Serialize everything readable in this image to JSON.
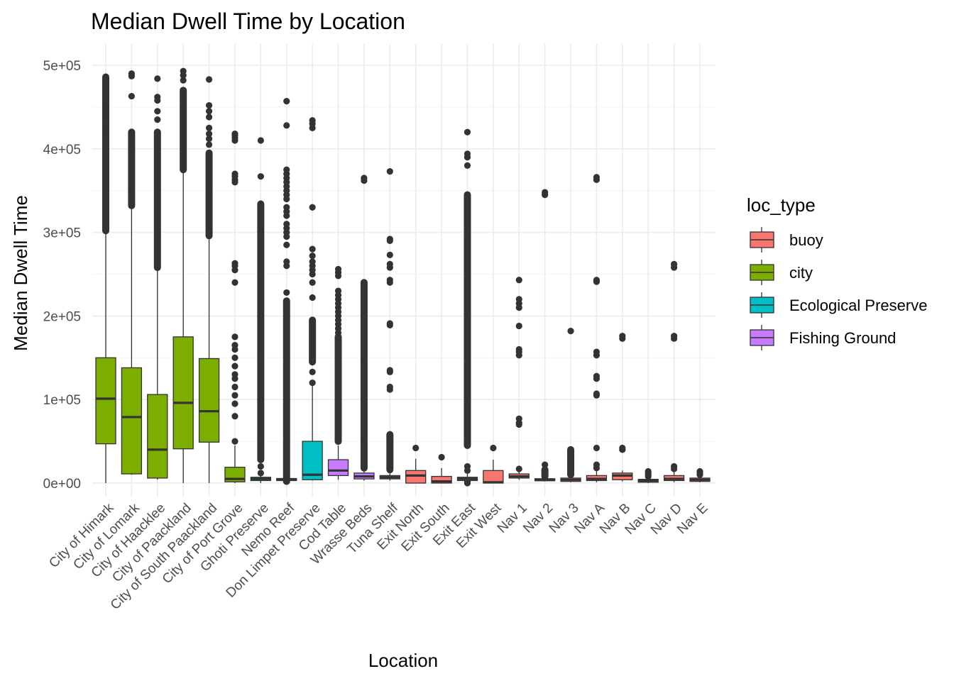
{
  "chart_data": {
    "type": "box",
    "title": "Median Dwell Time by Location",
    "xlabel": "Location",
    "ylabel": "Median Dwell Time",
    "ylim": [
      -20000,
      520000
    ],
    "yticks": [
      0,
      100000,
      200000,
      300000,
      400000,
      500000
    ],
    "ytick_labels": [
      "0e+00",
      "1e+05",
      "2e+05",
      "3e+05",
      "4e+05",
      "5e+05"
    ],
    "grid": true,
    "legend": {
      "title": "loc_type",
      "placement": "right"
    },
    "series": [
      {
        "name": "buoy",
        "color": "#F8766D"
      },
      {
        "name": "city",
        "color": "#7CAE00"
      },
      {
        "name": "Ecological Preserve",
        "color": "#00BFC4"
      },
      {
        "name": "Fishing Ground",
        "color": "#C77CFF"
      }
    ],
    "categories": [
      {
        "label": "City of Himark",
        "type": "city",
        "min": 0,
        "q1": 47000,
        "median": 101000,
        "q3": 150000,
        "max": 302000,
        "outliers_low": 302000,
        "outliers_high": 486000,
        "outlier_dense": true,
        "extra_outliers": [
          446000,
          440000,
          425000
        ]
      },
      {
        "label": "City of Lomark",
        "type": "city",
        "min": 10000,
        "q1": 11000,
        "median": 79000,
        "q3": 138000,
        "max": 330000,
        "outliers_low": 332000,
        "outliers_high": 420000,
        "outlier_dense": true,
        "extra_outliers": [
          490000,
          487000,
          463000
        ]
      },
      {
        "label": "City of Haacklee",
        "type": "city",
        "min": 4000,
        "q1": 6000,
        "median": 40000,
        "q3": 106000,
        "max": 255000,
        "outliers_low": 258000,
        "outliers_high": 420000,
        "outlier_dense": true,
        "extra_outliers": [
          484000,
          462000,
          458000,
          445000,
          435000
        ]
      },
      {
        "label": "City of Paackland",
        "type": "city",
        "min": 0,
        "q1": 41000,
        "median": 96000,
        "q3": 175000,
        "max": 373000,
        "outliers_low": 375000,
        "outliers_high": 470000,
        "outlier_dense": true,
        "extra_outliers": [
          493000,
          488000,
          482000
        ]
      },
      {
        "label": "City of South Paackland",
        "type": "city",
        "min": 0,
        "q1": 49000,
        "median": 86000,
        "q3": 149000,
        "max": 293000,
        "outliers_low": 296000,
        "outliers_high": 395000,
        "outlier_dense": true,
        "extra_outliers": [
          483000,
          452000,
          445000,
          438000,
          425000,
          418000,
          412000,
          405000
        ]
      },
      {
        "label": "City of Port Grove",
        "type": "city",
        "min": 0,
        "q1": 1500,
        "median": 5000,
        "q3": 19000,
        "max": 45000,
        "outlier_dense": false,
        "extra_outliers": [
          50000,
          80000,
          95000,
          105000,
          115000,
          125000,
          130000,
          140000,
          150000,
          160000,
          165000,
          175000,
          240000,
          255000,
          260000,
          263000,
          360000,
          363000,
          367000,
          370000,
          410000,
          413000,
          416000,
          418000
        ]
      },
      {
        "label": "Ghoti Preserve",
        "type": "Ecological Preserve",
        "min": 0,
        "q1": 3000,
        "median": 5000,
        "q3": 7000,
        "max": 9000,
        "outliers_low": 28000,
        "outliers_high": 334000,
        "outlier_dense": true,
        "extra_outliers": [
          12000,
          20000,
          367000,
          410000
        ]
      },
      {
        "label": "Nemo Reef",
        "type": "Ecological Preserve",
        "min": 0,
        "q1": 3000,
        "median": 4000,
        "q3": 5500,
        "max": 8000,
        "outliers_low": 2000,
        "outliers_high": 218000,
        "outlier_dense": true,
        "extra_outliers": [
          228000,
          260000,
          265000,
          285000,
          295000,
          300000,
          305000,
          310000,
          320000,
          325000,
          330000,
          340000,
          345000,
          350000,
          355000,
          360000,
          365000,
          370000,
          375000,
          428000,
          457000
        ]
      },
      {
        "label": "Don Limpet Preserve",
        "type": "Ecological Preserve",
        "min": 3000,
        "q1": 4000,
        "median": 10000,
        "q3": 50000,
        "max": 118000,
        "outliers_low": 145000,
        "outliers_high": 195000,
        "outlier_dense": true,
        "extra_outliers": [
          120000,
          133000,
          222000,
          240000,
          250000,
          255000,
          260000,
          265000,
          272000,
          280000,
          330000,
          425000,
          430000,
          434000
        ]
      },
      {
        "label": "Cod Table",
        "type": "Fishing Ground",
        "min": 4000,
        "q1": 9000,
        "median": 15000,
        "q3": 28000,
        "max": 45000,
        "outliers_low": 50000,
        "outliers_high": 175000,
        "outlier_dense": true,
        "extra_outliers": [
          180000,
          185000,
          190000,
          195000,
          200000,
          205000,
          210000,
          215000,
          220000,
          225000,
          230000,
          248000,
          252000,
          256000
        ]
      },
      {
        "label": "Wrasse Beds",
        "type": "Fishing Ground",
        "min": 3000,
        "q1": 5000,
        "median": 8000,
        "q3": 12000,
        "max": 16000,
        "outliers_low": 18000,
        "outliers_high": 240000,
        "outlier_dense": true,
        "extra_outliers": [
          362000,
          365000
        ]
      },
      {
        "label": "Tuna Shelf",
        "type": "Fishing Ground",
        "min": 3000,
        "q1": 5000,
        "median": 7000,
        "q3": 9000,
        "max": 13000,
        "outliers_low": 16000,
        "outliers_high": 58000,
        "outlier_dense": true,
        "extra_outliers": [
          112000,
          115000,
          133000,
          135000,
          189000,
          191000,
          240000,
          243000,
          258000,
          262000,
          273000,
          290000,
          292000,
          373000
        ]
      },
      {
        "label": "Exit North",
        "type": "buoy",
        "min": 0,
        "q1": 0,
        "median": 9000,
        "q3": 15000,
        "max": 29000,
        "outlier_dense": false,
        "extra_outliers": [
          42000
        ]
      },
      {
        "label": "Exit South",
        "type": "buoy",
        "min": 0,
        "q1": 0,
        "median": 2000,
        "q3": 8000,
        "max": 18000,
        "outlier_dense": false,
        "extra_outliers": [
          31000
        ]
      },
      {
        "label": "Exit East",
        "type": "buoy",
        "min": 0,
        "q1": 3000,
        "median": 5000,
        "q3": 7000,
        "max": 12000,
        "outliers_low": 45000,
        "outliers_high": 345000,
        "outlier_dense": true,
        "extra_outliers": [
          0,
          2000,
          15000,
          20000,
          380000,
          390000,
          394000,
          420000
        ]
      },
      {
        "label": "Exit West",
        "type": "buoy",
        "min": 0,
        "q1": 0,
        "median": 1000,
        "q3": 15000,
        "max": 28000,
        "outlier_dense": false,
        "extra_outliers": [
          42000
        ]
      },
      {
        "label": "Nav 1",
        "type": "buoy",
        "min": 4000,
        "q1": 6000,
        "median": 8000,
        "q3": 11000,
        "max": 14000,
        "outlier_dense": false,
        "extra_outliers": [
          17000,
          70000,
          72000,
          77000,
          153000,
          157000,
          160000,
          188000,
          210000,
          215000,
          220000,
          243000
        ]
      },
      {
        "label": "Nav 2",
        "type": "buoy",
        "min": 2000,
        "q1": 3000,
        "median": 4000,
        "q3": 5000,
        "max": 7000,
        "outliers_low": 8000,
        "outliers_high": 16000,
        "outlier_dense": true,
        "extra_outliers": [
          22000,
          345000,
          348000
        ]
      },
      {
        "label": "Nav 3",
        "type": "buoy",
        "min": 1000,
        "q1": 2000,
        "median": 4000,
        "q3": 6000,
        "max": 9000,
        "outliers_low": 10000,
        "outliers_high": 40000,
        "outlier_dense": true,
        "extra_outliers": [
          182000
        ]
      },
      {
        "label": "Nav A",
        "type": "buoy",
        "min": 1000,
        "q1": 3000,
        "median": 5000,
        "q3": 9000,
        "max": 15000,
        "outlier_dense": false,
        "extra_outliers": [
          18000,
          22000,
          42000,
          105000,
          107000,
          125000,
          128000,
          153000,
          157000,
          241000,
          243000,
          363000,
          366000
        ]
      },
      {
        "label": "Nav B",
        "type": "buoy",
        "min": 2000,
        "q1": 4000,
        "median": 9000,
        "q3": 12000,
        "max": 15000,
        "outlier_dense": false,
        "extra_outliers": [
          40000,
          42000,
          173000,
          176000
        ]
      },
      {
        "label": "Nav C",
        "type": "buoy",
        "min": 0,
        "q1": 1000,
        "median": 3000,
        "q3": 4500,
        "max": 6000,
        "outlier_dense": false,
        "extra_outliers": [
          8000,
          10000,
          12000,
          14000
        ]
      },
      {
        "label": "Nav D",
        "type": "buoy",
        "min": 1000,
        "q1": 3000,
        "median": 5000,
        "q3": 9000,
        "max": 13000,
        "outlier_dense": false,
        "extra_outliers": [
          17000,
          20000,
          173000,
          176000,
          258000,
          262000
        ]
      },
      {
        "label": "Nav E",
        "type": "buoy",
        "min": 1000,
        "q1": 2000,
        "median": 4000,
        "q3": 6000,
        "max": 8000,
        "outlier_dense": false,
        "extra_outliers": [
          10000,
          12000,
          14000
        ]
      }
    ]
  }
}
